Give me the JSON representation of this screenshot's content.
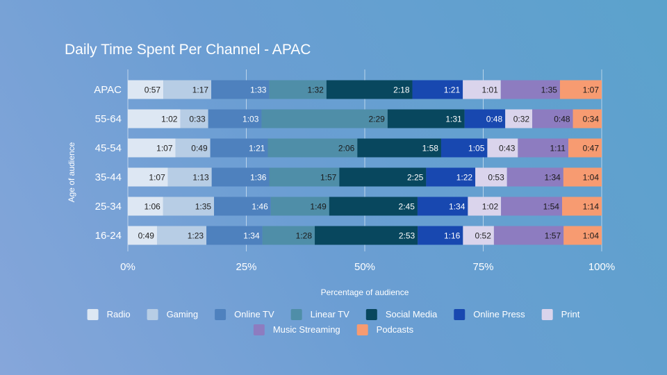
{
  "chart_data": {
    "type": "bar",
    "orientation": "horizontal",
    "stacked": "percent",
    "title": "Daily Time Spent Per Channel - APAC",
    "xlabel": "Percentage of audience",
    "ylabel": "Age of audience",
    "xlim": [
      0,
      100
    ],
    "x_ticks": [
      "0%",
      "25%",
      "50%",
      "75%",
      "100%"
    ],
    "grid": true,
    "legend_position": "bottom",
    "categories": [
      "APAC",
      "55-64",
      "45-54",
      "35-44",
      "25-34",
      "16-24"
    ],
    "series": [
      {
        "name": "Radio",
        "color": "#dde7f3",
        "label_color": "#222222",
        "values": [
          0.95,
          1.033,
          1.117,
          1.117,
          1.1,
          0.817
        ],
        "labels": [
          "0:57",
          "1:02",
          "1:07",
          "1:07",
          "1:06",
          "0:49"
        ]
      },
      {
        "name": "Gaming",
        "color": "#b7cde5",
        "label_color": "#222222",
        "values": [
          1.283,
          0.55,
          0.817,
          1.217,
          1.583,
          1.383
        ],
        "labels": [
          "1:17",
          "0:33",
          "0:49",
          "1:13",
          "1:35",
          "1:23"
        ]
      },
      {
        "name": "Online TV",
        "color": "#4e81be",
        "label_color": "#ffffff",
        "values": [
          1.55,
          1.05,
          1.35,
          1.6,
          1.767,
          1.567
        ],
        "labels": [
          "1:33",
          "1:03",
          "1:21",
          "1:36",
          "1:46",
          "1:34"
        ]
      },
      {
        "name": "Linear TV",
        "color": "#4f8ea8",
        "label_color": "#1a1a1a",
        "values": [
          1.533,
          2.483,
          2.1,
          1.95,
          1.817,
          1.467
        ],
        "labels": [
          "1:32",
          "2:29",
          "2:06",
          "1:57",
          "1:49",
          "1:28"
        ]
      },
      {
        "name": "Social Media",
        "color": "#08475e",
        "label_color": "#ffffff",
        "values": [
          2.3,
          1.517,
          1.967,
          2.417,
          2.75,
          2.883
        ],
        "labels": [
          "2:18",
          "1:31",
          "1:58",
          "2:25",
          "2:45",
          "2:53"
        ]
      },
      {
        "name": "Online Press",
        "color": "#1848b0",
        "label_color": "#ffffff",
        "values": [
          1.35,
          0.8,
          1.083,
          1.367,
          1.567,
          1.267
        ],
        "labels": [
          "1:21",
          "0:48",
          "1:05",
          "1:22",
          "1:34",
          "1:16"
        ]
      },
      {
        "name": "Print",
        "color": "#dad4ec",
        "label_color": "#222222",
        "values": [
          1.017,
          0.533,
          0.717,
          0.883,
          1.033,
          0.867
        ],
        "labels": [
          "1:01",
          "0:32",
          "0:43",
          "0:53",
          "1:02",
          "0:52"
        ]
      },
      {
        "name": "Music Streaming",
        "color": "#8d7cc0",
        "label_color": "#1a1a1a",
        "values": [
          1.583,
          0.8,
          1.183,
          1.567,
          1.9,
          1.95
        ],
        "labels": [
          "1:35",
          "0:48",
          "1:11",
          "1:34",
          "1:54",
          "1:57"
        ]
      },
      {
        "name": "Podcasts",
        "color": "#f79b71",
        "label_color": "#1a1a1a",
        "values": [
          1.117,
          0.567,
          0.783,
          1.067,
          1.233,
          1.067
        ],
        "labels": [
          "1:07",
          "0:34",
          "0:47",
          "1:04",
          "1:14",
          "1:04"
        ]
      }
    ]
  }
}
